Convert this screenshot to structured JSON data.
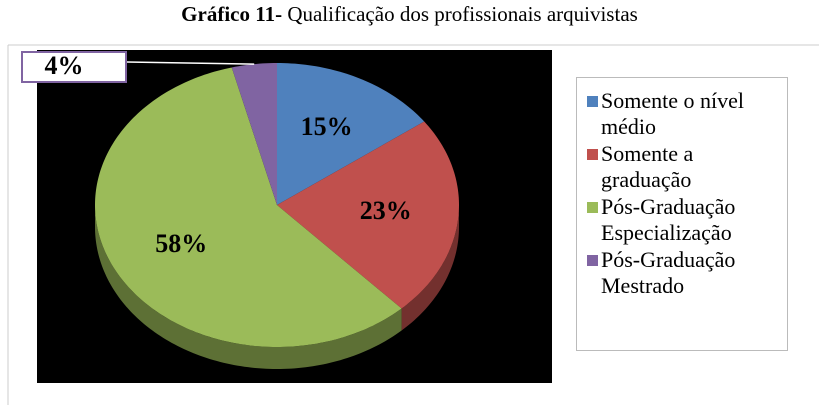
{
  "chart_data": {
    "type": "pie",
    "title_label": "Gráfico 11-",
    "title": "Qualificação dos profissionais arquivistas",
    "categories": [
      "Somente o nível médio",
      "Somente a graduação",
      "Pós-Graduação Especialização",
      "Pós-Graduação Mestrado"
    ],
    "values": [
      15,
      23,
      58,
      4
    ],
    "value_labels": [
      "15%",
      "23%",
      "58%",
      "4%"
    ],
    "colors": [
      "#4f81bd",
      "#c0504d",
      "#9bbb59",
      "#8064a2"
    ],
    "legend": "right"
  }
}
